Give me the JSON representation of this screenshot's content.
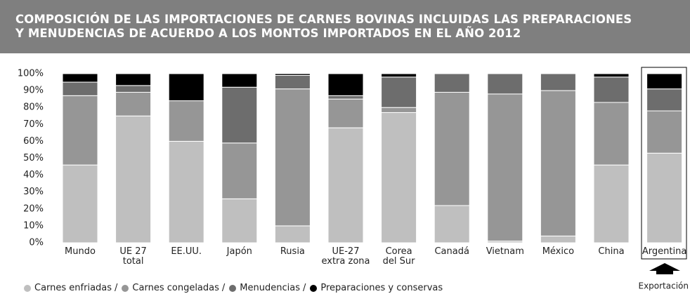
{
  "chart_data": {
    "type": "stacked_bar",
    "title": "COMPOSICIÓN DE LAS IMPORTACIONES DE CARNES BOVINAS INCLUIDAS LAS PREPARACIONES\nY MENUDENCIAS DE ACUERDO A LOS MONTOS IMPORTADOS EN EL AÑO 2012",
    "categories": [
      "Mundo",
      "UE 27\ntotal",
      "EE.UU.",
      "Japón",
      "Rusia",
      "UE-27\nextra zona",
      "Corea\ndel Sur",
      "Canadá",
      "Vietnam",
      "México",
      "China",
      "Argentina"
    ],
    "series": [
      {
        "name": "Carnes enfriadas",
        "color": "#bfbfbf",
        "values": [
          46,
          75,
          60,
          26,
          10,
          68,
          77,
          22,
          1,
          4,
          46,
          53
        ]
      },
      {
        "name": "Carnes congeladas",
        "color": "#969696",
        "values": [
          41,
          14,
          24,
          33,
          81,
          17,
          3,
          67,
          87,
          86,
          37,
          25
        ]
      },
      {
        "name": "Menudencias",
        "color": "#6d6d6d",
        "values": [
          8,
          4,
          0,
          33,
          8,
          2,
          18,
          11,
          12,
          10,
          15,
          13
        ]
      },
      {
        "name": "Preparaciones y conservas",
        "color": "#000000",
        "values": [
          5,
          7,
          16,
          8,
          1,
          13,
          2,
          0,
          0,
          0,
          2,
          9
        ]
      }
    ],
    "legend_separator": "/",
    "ylim": [
      0,
      100
    ],
    "yticks": [
      {
        "value": 0,
        "label": "0%"
      },
      {
        "value": 10,
        "label": "10%"
      },
      {
        "value": 20,
        "label": "20%"
      },
      {
        "value": 30,
        "label": "30%"
      },
      {
        "value": 40,
        "label": "40%"
      },
      {
        "value": 50,
        "label": "50%"
      },
      {
        "value": 60,
        "label": "60%"
      },
      {
        "value": 70,
        "label": "70%"
      },
      {
        "value": 80,
        "label": "80%"
      },
      {
        "value": 90,
        "label": "90%"
      },
      {
        "value": 100,
        "label": "100%"
      }
    ],
    "annotation": "Exportación",
    "legend": "bottom-left",
    "grid": false
  }
}
